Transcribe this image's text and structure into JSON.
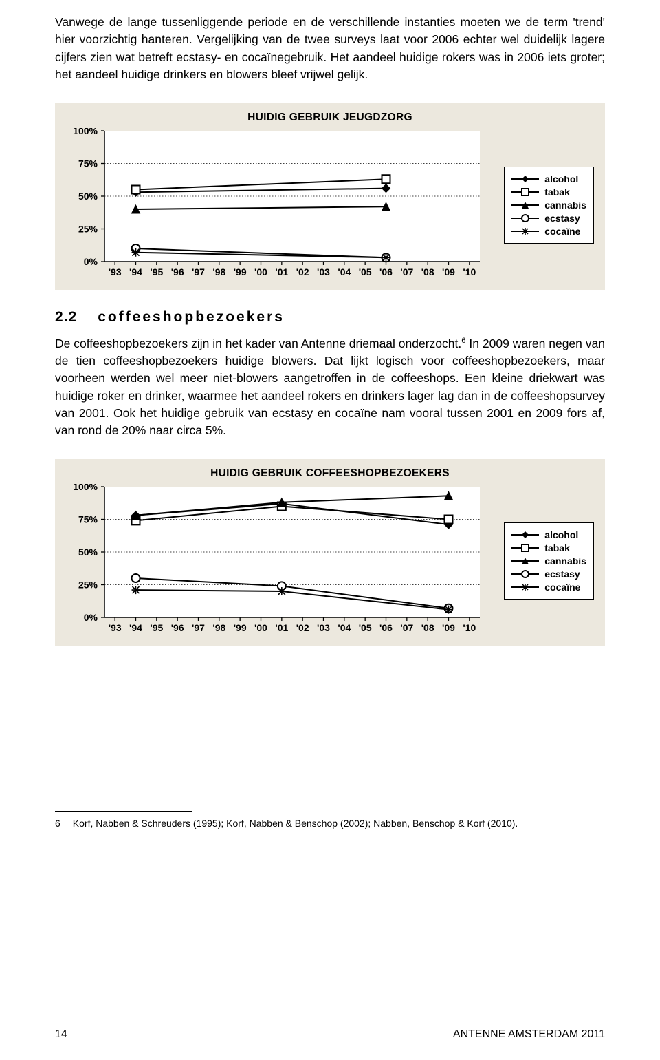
{
  "para1": "Vanwege de lange tussenliggende periode en de verschillende instanties moeten we de term 'trend' hier voorzichtig hanteren. Vergelijking van de twee surveys laat voor 2006 echter wel duidelijk lagere cijfers zien wat betreft ecstasy- en cocaïnegebruik. Het aandeel huidige rokers was in 2006 iets groter; het aandeel huidige drinkers en blowers bleef vrijwel gelijk.",
  "section_num": "2.2",
  "section_title": "coffeeshopbezoekers",
  "para2_a": "De coffeeshopbezoekers zijn in het kader van Antenne driemaal onderzocht.",
  "para2_b": " In 2009 waren negen van de tien coffeeshopbezoekers huidige blowers. Dat lijkt logisch voor coffeeshopbezoekers, maar voorheen werden wel meer niet-blowers aangetroffen in de coffeeshops. Een kleine driekwart was huidige roker en drinker, waarmee het aandeel rokers en drinkers lager lag dan in de coffeeshopsurvey van 2001. Ook het huidige gebruik van ecstasy en cocaïne nam vooral tussen 2001 en 2009 fors af, van rond de 20% naar circa 5%.",
  "fn_ref": "6",
  "footnote_num": "6",
  "footnote_text": "Korf, Nabben & Schreuders (1995); Korf, Nabben & Benschop (2002); Nabben, Benschop & Korf (2010).",
  "page_num": "14",
  "doc_title": "ANTENNE AMSTERDAM 2011",
  "chart1": {
    "title": "HUIDIG GEBRUIK JEUGDZORG",
    "y_ticks": [
      "0%",
      "25%",
      "50%",
      "75%",
      "100%"
    ],
    "x_labels": [
      "'93",
      "'94",
      "'95",
      "'96",
      "'97",
      "'98",
      "'99",
      "'00",
      "'01",
      "'02",
      "'03",
      "'04",
      "'05",
      "'06",
      "'07",
      "'08",
      "'09",
      "'10"
    ],
    "series": [
      {
        "name": "alcohol",
        "marker": "diamond",
        "points": [
          {
            "x": "'94",
            "y": 53
          },
          {
            "x": "'06",
            "y": 56
          }
        ]
      },
      {
        "name": "tabak",
        "marker": "square",
        "points": [
          {
            "x": "'94",
            "y": 55
          },
          {
            "x": "'06",
            "y": 63
          }
        ]
      },
      {
        "name": "cannabis",
        "marker": "triangle",
        "points": [
          {
            "x": "'94",
            "y": 40
          },
          {
            "x": "'06",
            "y": 42
          }
        ]
      },
      {
        "name": "ecstasy",
        "marker": "circle",
        "points": [
          {
            "x": "'94",
            "y": 10
          },
          {
            "x": "'06",
            "y": 3
          }
        ]
      },
      {
        "name": "cocaïne",
        "marker": "star",
        "points": [
          {
            "x": "'94",
            "y": 7
          },
          {
            "x": "'06",
            "y": 3
          }
        ]
      }
    ]
  },
  "chart2": {
    "title": "HUIDIG GEBRUIK COFFEESHOPBEZOEKERS",
    "y_ticks": [
      "0%",
      "25%",
      "50%",
      "75%",
      "100%"
    ],
    "x_labels": [
      "'93",
      "'94",
      "'95",
      "'96",
      "'97",
      "'98",
      "'99",
      "'00",
      "'01",
      "'02",
      "'03",
      "'04",
      "'05",
      "'06",
      "'07",
      "'08",
      "'09",
      "'10"
    ],
    "series": [
      {
        "name": "alcohol",
        "marker": "diamond",
        "points": [
          {
            "x": "'94",
            "y": 78
          },
          {
            "x": "'01",
            "y": 87
          },
          {
            "x": "'09",
            "y": 71
          }
        ]
      },
      {
        "name": "tabak",
        "marker": "square",
        "points": [
          {
            "x": "'94",
            "y": 74
          },
          {
            "x": "'01",
            "y": 85
          },
          {
            "x": "'09",
            "y": 75
          }
        ]
      },
      {
        "name": "cannabis",
        "marker": "triangle",
        "points": [
          {
            "x": "'94",
            "y": 78
          },
          {
            "x": "'01",
            "y": 88
          },
          {
            "x": "'09",
            "y": 93
          }
        ]
      },
      {
        "name": "ecstasy",
        "marker": "circle",
        "points": [
          {
            "x": "'94",
            "y": 30
          },
          {
            "x": "'01",
            "y": 24
          },
          {
            "x": "'09",
            "y": 7
          }
        ]
      },
      {
        "name": "cocaïne",
        "marker": "star",
        "points": [
          {
            "x": "'94",
            "y": 21
          },
          {
            "x": "'01",
            "y": 20
          },
          {
            "x": "'09",
            "y": 6
          }
        ]
      }
    ]
  },
  "legend_items": [
    "alcohol",
    "tabak",
    "cannabis",
    "ecstasy",
    "cocaïne"
  ],
  "colors": {
    "bg": "#ece8de",
    "line": "#000000",
    "grid": "#000000",
    "plot_bg": "#ffffff"
  }
}
